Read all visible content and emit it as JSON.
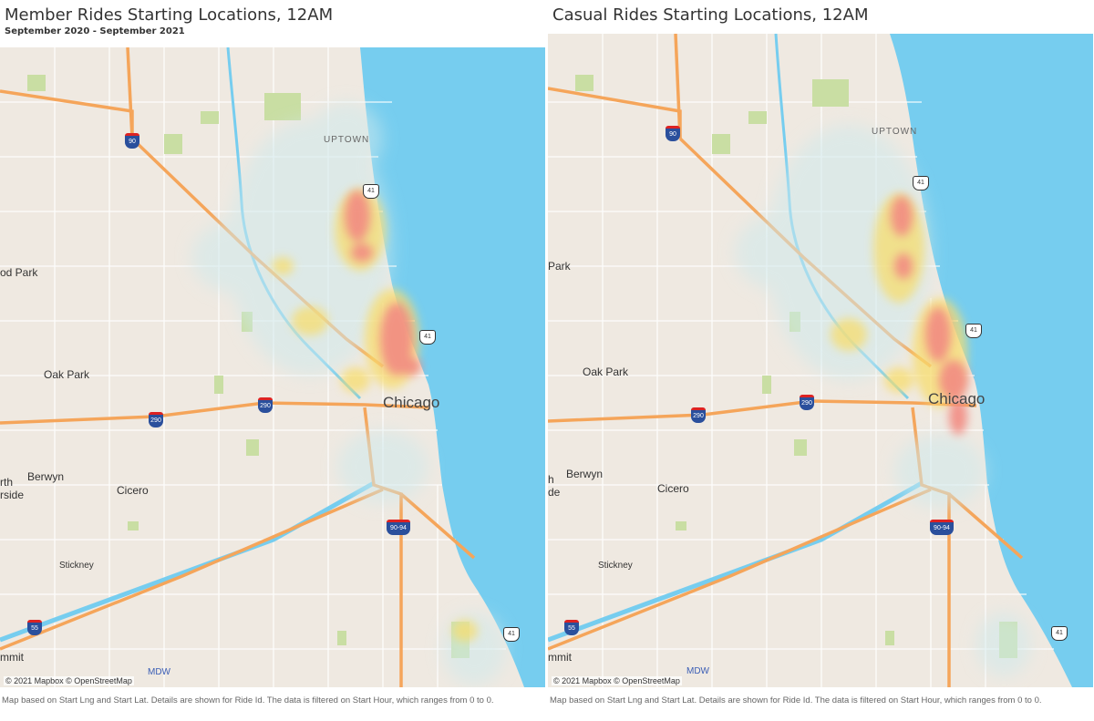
{
  "left": {
    "title": "Member Rides Starting Locations, 12AM",
    "subtitle": "September 2020 - September 2021",
    "attribution": "© 2021 Mapbox © OpenStreetMap",
    "caption": "Map based on Start Lng and Start Lat.  Details are shown for Ride Id. The data is filtered on Start Hour, which ranges from 0 to 0.",
    "places": {
      "park": "od Park",
      "oak_park": "Oak Park",
      "chicago": "Chicago",
      "berwyn": "Berwyn",
      "cicero": "Cicero",
      "north1": "rth",
      "north2": "rside",
      "stickney": "Stickney",
      "summit": "mmit",
      "uptown": "UPTOWN",
      "mdw": "MDW"
    },
    "shields": {
      "i90": "90",
      "us41a": "41",
      "us41b": "41",
      "i290a": "290",
      "i290b": "290",
      "i9094": "90-94",
      "i55": "55",
      "us41c": "41"
    }
  },
  "right": {
    "title": "Casual Rides Starting Locations, 12AM",
    "attribution": "© 2021 Mapbox © OpenStreetMap",
    "caption": "Map based on Start Lng and Start Lat.  Details are shown for Ride Id. The data is filtered on Start Hour, which ranges from 0 to 0.",
    "places": {
      "park": "Park",
      "oak_park": "Oak Park",
      "chicago": "Chicago",
      "berwyn": "Berwyn",
      "cicero": "Cicero",
      "north1": "h",
      "north2": "de",
      "stickney": "Stickney",
      "summit": "mmit",
      "uptown": "UPTOWN",
      "mdw": "MDW"
    },
    "shields": {
      "i90": "90",
      "us41a": "41",
      "us41b": "41",
      "i290a": "290",
      "i290b": "290",
      "i9094": "90-94",
      "i55": "55",
      "us41c": "41"
    }
  },
  "colors": {
    "water": "#76cdef",
    "land": "#efe9e1",
    "highway": "#f5a55a",
    "park": "#c9dea3",
    "heat_low": "#d6ecef",
    "heat_mid": "#f7dd6e",
    "heat_high": "#f28b82"
  }
}
